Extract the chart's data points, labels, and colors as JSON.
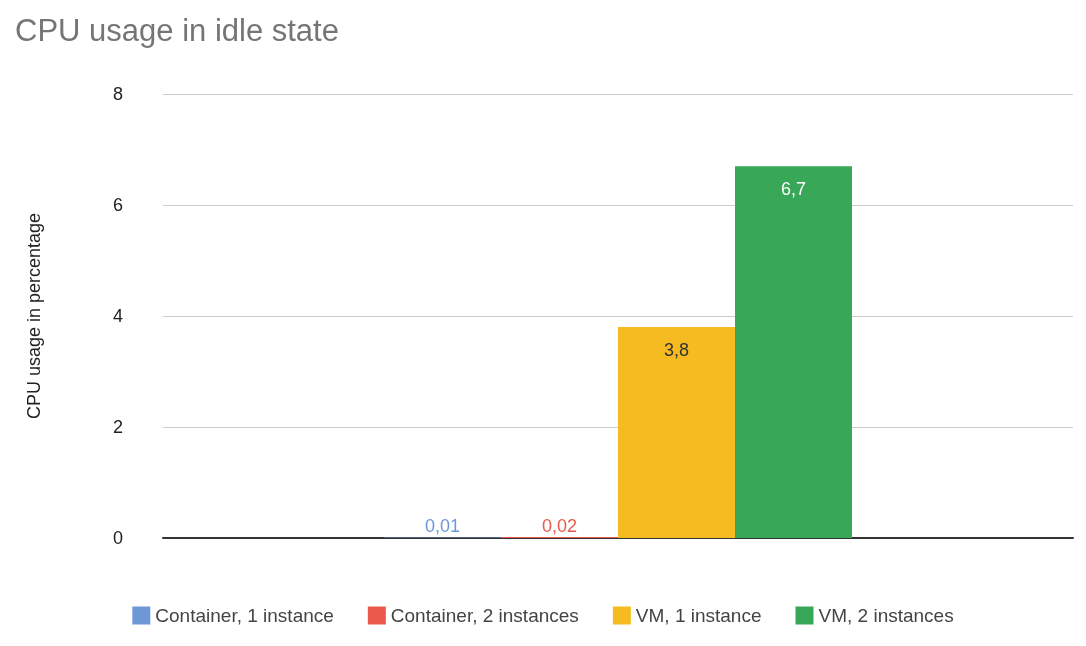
{
  "chart_data": {
    "type": "bar",
    "title": "CPU usage in idle state",
    "ylabel": "CPU usage in percentage",
    "categories": [
      null
    ],
    "series": [
      {
        "name": "Container, 1 instance",
        "color": "#6d97d6",
        "values": [
          0.01
        ],
        "value_labels": [
          "0,01"
        ]
      },
      {
        "name": "Container, 2 instances",
        "color": "#ea5a4b",
        "values": [
          0.02
        ],
        "value_labels": [
          "0,02"
        ]
      },
      {
        "name": "VM, 1 instance",
        "color": "#f6bb20",
        "values": [
          3.8
        ],
        "value_labels": [
          "3,8"
        ]
      },
      {
        "name": "VM, 2 instances",
        "color": "#38a757",
        "values": [
          6.7
        ],
        "value_labels": [
          "6,7"
        ]
      }
    ],
    "ylim": [
      0,
      8
    ],
    "yticks": [
      0,
      2,
      4,
      6,
      8
    ],
    "grid": "y",
    "legend": "bottom"
  }
}
